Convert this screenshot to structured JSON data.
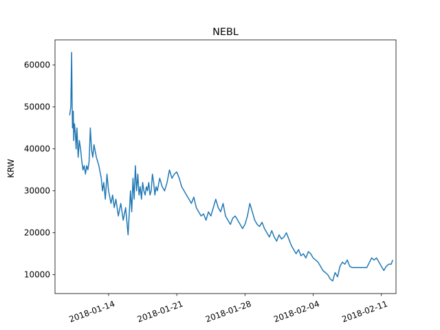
{
  "chart_data": {
    "type": "line",
    "title": "NEBL",
    "xlabel": "",
    "ylabel": "KRW",
    "grid": false,
    "legend": "none",
    "color": "#1f77b4",
    "xlim": [
      "2018-01-08T12:00",
      "2018-02-12T12:00"
    ],
    "ylim": [
      5500,
      66000
    ],
    "xticks": [
      "2018-01-14",
      "2018-01-21",
      "2018-01-28",
      "2018-02-04",
      "2018-02-11"
    ],
    "yticks": [
      10000,
      20000,
      30000,
      40000,
      50000,
      60000
    ],
    "series": [
      {
        "name": "",
        "x": [
          "2018-01-10T00:00",
          "2018-01-10T03:00",
          "2018-01-10T05:00",
          "2018-01-10T06:00",
          "2018-01-10T07:00",
          "2018-01-10T09:00",
          "2018-01-10T10:00",
          "2018-01-10T12:00",
          "2018-01-10T14:00",
          "2018-01-10T16:00",
          "2018-01-10T18:00",
          "2018-01-10T21:00",
          "2018-01-11T00:00",
          "2018-01-11T03:00",
          "2018-01-11T06:00",
          "2018-01-11T09:00",
          "2018-01-11T12:00",
          "2018-01-11T15:00",
          "2018-01-11T18:00",
          "2018-01-11T21:00",
          "2018-01-12T00:00",
          "2018-01-12T03:00",
          "2018-01-12T06:00",
          "2018-01-12T09:00",
          "2018-01-12T12:00",
          "2018-01-12T18:00",
          "2018-01-13T00:00",
          "2018-01-13T06:00",
          "2018-01-13T09:00",
          "2018-01-13T12:00",
          "2018-01-13T16:00",
          "2018-01-13T20:00",
          "2018-01-14T00:00",
          "2018-01-14T06:00",
          "2018-01-14T10:00",
          "2018-01-14T14:00",
          "2018-01-14T18:00",
          "2018-01-15T00:00",
          "2018-01-15T06:00",
          "2018-01-15T12:00",
          "2018-01-15T18:00",
          "2018-01-16T00:00",
          "2018-01-16T06:00",
          "2018-01-16T09:00",
          "2018-01-16T12:00",
          "2018-01-16T15:00",
          "2018-01-16T18:00",
          "2018-01-16T21:00",
          "2018-01-17T00:00",
          "2018-01-17T03:00",
          "2018-01-17T06:00",
          "2018-01-17T09:00",
          "2018-01-17T12:00",
          "2018-01-17T15:00",
          "2018-01-17T18:00",
          "2018-01-17T21:00",
          "2018-01-18T00:00",
          "2018-01-18T03:00",
          "2018-01-18T06:00",
          "2018-01-18T09:00",
          "2018-01-18T12:00",
          "2018-01-18T15:00",
          "2018-01-18T18:00",
          "2018-01-18T21:00",
          "2018-01-19T00:00",
          "2018-01-19T06:00",
          "2018-01-19T12:00",
          "2018-01-19T18:00",
          "2018-01-20T00:00",
          "2018-01-20T06:00",
          "2018-01-20T12:00",
          "2018-01-20T18:00",
          "2018-01-21T00:00",
          "2018-01-21T06:00",
          "2018-01-21T12:00",
          "2018-01-21T18:00",
          "2018-01-22T00:00",
          "2018-01-22T06:00",
          "2018-01-22T12:00",
          "2018-01-22T18:00",
          "2018-01-23T00:00",
          "2018-01-23T06:00",
          "2018-01-23T12:00",
          "2018-01-23T18:00",
          "2018-01-24T00:00",
          "2018-01-24T06:00",
          "2018-01-24T12:00",
          "2018-01-24T18:00",
          "2018-01-25T00:00",
          "2018-01-25T06:00",
          "2018-01-25T12:00",
          "2018-01-25T18:00",
          "2018-01-26T00:00",
          "2018-01-26T06:00",
          "2018-01-26T12:00",
          "2018-01-26T18:00",
          "2018-01-27T00:00",
          "2018-01-27T06:00",
          "2018-01-27T12:00",
          "2018-01-27T18:00",
          "2018-01-28T00:00",
          "2018-01-28T06:00",
          "2018-01-28T12:00",
          "2018-01-28T18:00",
          "2018-01-29T00:00",
          "2018-01-29T06:00",
          "2018-01-29T12:00",
          "2018-01-29T18:00",
          "2018-01-30T00:00",
          "2018-01-30T06:00",
          "2018-01-30T12:00",
          "2018-01-30T18:00",
          "2018-01-31T00:00",
          "2018-01-31T06:00",
          "2018-01-31T12:00",
          "2018-01-31T18:00",
          "2018-02-01T00:00",
          "2018-02-01T06:00",
          "2018-02-01T12:00",
          "2018-02-01T18:00",
          "2018-02-02T00:00",
          "2018-02-02T06:00",
          "2018-02-02T12:00",
          "2018-02-02T18:00",
          "2018-02-03T00:00",
          "2018-02-03T06:00",
          "2018-02-03T12:00",
          "2018-02-03T18:00",
          "2018-02-04T00:00",
          "2018-02-04T06:00",
          "2018-02-04T12:00",
          "2018-02-04T18:00",
          "2018-02-05T00:00",
          "2018-02-05T06:00",
          "2018-02-05T12:00",
          "2018-02-05T18:00",
          "2018-02-06T00:00",
          "2018-02-06T06:00",
          "2018-02-06T12:00",
          "2018-02-06T18:00",
          "2018-02-07T00:00",
          "2018-02-07T06:00",
          "2018-02-07T12:00",
          "2018-02-07T18:00",
          "2018-02-08T00:00",
          "2018-02-08T12:00",
          "2018-02-09T00:00",
          "2018-02-09T12:00",
          "2018-02-10T00:00",
          "2018-02-10T06:00",
          "2018-02-10T12:00",
          "2018-02-10T18:00",
          "2018-02-11T00:00",
          "2018-02-11T06:00",
          "2018-02-11T12:00",
          "2018-02-11T18:00",
          "2018-02-12T00:00",
          "2018-02-12T04:00"
        ],
        "y": [
          48000,
          50000,
          63000,
          52000,
          45000,
          49000,
          42000,
          46000,
          44000,
          40000,
          45000,
          38000,
          42000,
          40000,
          37000,
          35000,
          36000,
          34000,
          36000,
          35000,
          37000,
          45000,
          40000,
          38000,
          41000,
          38000,
          36000,
          33000,
          30000,
          32000,
          28000,
          34000,
          30000,
          27000,
          29000,
          26000,
          28000,
          24000,
          27000,
          23000,
          26000,
          19500,
          30000,
          25000,
          33000,
          28000,
          36000,
          30000,
          34000,
          29000,
          31000,
          28000,
          32000,
          30000,
          29000,
          31000,
          30000,
          32000,
          29000,
          30000,
          34000,
          32000,
          29000,
          31000,
          30000,
          33000,
          31000,
          30000,
          32000,
          35000,
          33000,
          34000,
          34500,
          33000,
          31000,
          30000,
          29000,
          28000,
          27000,
          28500,
          26000,
          25000,
          24000,
          24500,
          23000,
          25000,
          24000,
          26000,
          28000,
          26000,
          25000,
          27000,
          24000,
          23000,
          22000,
          23500,
          24000,
          23000,
          22000,
          21000,
          22000,
          24000,
          27000,
          25000,
          23000,
          22000,
          21500,
          22500,
          21000,
          20000,
          19000,
          20500,
          19000,
          18000,
          19500,
          18500,
          19000,
          20000,
          18500,
          17000,
          16000,
          15000,
          16000,
          14500,
          15000,
          14000,
          15500,
          15000,
          14000,
          13500,
          13000,
          12000,
          11000,
          10500,
          10000,
          9000,
          8500,
          10500,
          9500,
          12000,
          13000,
          12500,
          13500,
          12000,
          11700,
          11700,
          11700,
          11700,
          14000,
          13500,
          14000,
          13000,
          12000,
          11000,
          12000,
          12500,
          12500,
          13500
        ]
      }
    ]
  }
}
